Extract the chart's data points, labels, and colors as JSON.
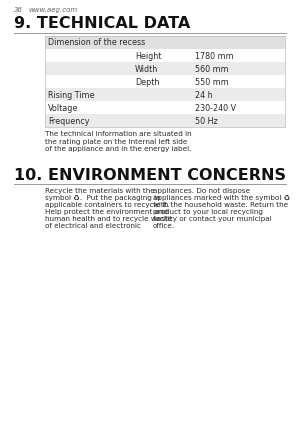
{
  "page_num": "36",
  "website": "www.aeg.com",
  "section9_title": "9. TECHNICAL DATA",
  "table_header": "Dimension of the recess",
  "table_rows": [
    {
      "label": "Height",
      "value": "1780 mm",
      "indent": true,
      "shaded": false
    },
    {
      "label": "Width",
      "value": "560 mm",
      "indent": true,
      "shaded": true
    },
    {
      "label": "Depth",
      "value": "550 mm",
      "indent": true,
      "shaded": false
    },
    {
      "label": "Rising Time",
      "value": "24 h",
      "indent": false,
      "shaded": true
    },
    {
      "label": "Voltage",
      "value": "230-240 V",
      "indent": false,
      "shaded": false
    },
    {
      "label": "Frequency",
      "value": "50 Hz",
      "indent": false,
      "shaded": true
    }
  ],
  "table_note": "The technical information are situated in\nthe rating plate on the internal left side\nof the appliance and in the energy label.",
  "section10_title": "10. ENVIRONMENT CONCERNS",
  "env_left": "Recycle the materials with the\nsymbol ♻.  Put the packaging in\napplicable containers to recycle it.\nHelp protect the environment and\nhuman health and to recycle waste\nof electrical and electronic",
  "env_right": "appliances. Do not dispose\nappliances marked with the symbol ♻\nwith the household waste. Return the\nproduct to your local recycling\nfacility or contact your municipal\noffice.",
  "bg_color": "#ffffff",
  "shade_light": "#ebebeb",
  "shade_header": "#e0e0e0",
  "text_color": "#2a2a2a",
  "gray_text": "#666666",
  "border_color": "#bbbbbb"
}
